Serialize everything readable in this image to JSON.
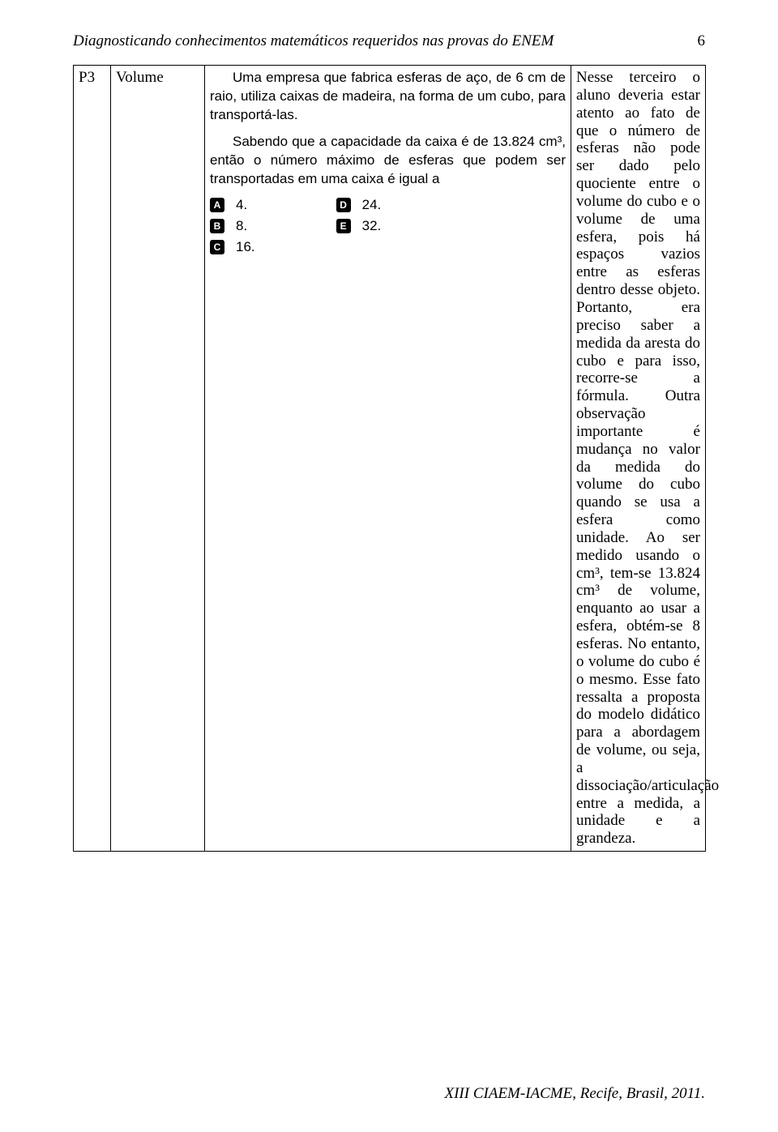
{
  "header": {
    "title": "Diagnosticando conhecimentos matemáticos requeridos nas provas do ENEM",
    "page_number": "6"
  },
  "table": {
    "row_id": "P3",
    "topic": "Volume",
    "question": {
      "p1": "Uma empresa que fabrica esferas de aço, de 6 cm de raio, utiliza caixas de madeira, na forma de um cubo, para transportá-las.",
      "p2": "Sabendo que a capacidade da caixa é de 13.824 cm³, então o número máximo de esferas que podem ser transportadas em uma caixa é igual a",
      "answers": {
        "A": "4.",
        "B": "8.",
        "C": "16.",
        "D": "24.",
        "E": "32."
      }
    },
    "analysis": "Nesse terceiro o aluno deveria estar atento ao fato de que o número de esferas não pode ser dado pelo quociente entre o volume do cubo e o volume de uma esfera, pois há espaços vazios entre as esferas dentro desse objeto. Portanto, era preciso saber a medida da aresta do cubo e para isso, recorre-se a fórmula. Outra observação importante é mudança no valor da medida do volume do cubo quando se usa a esfera como unidade. Ao ser medido usando o cm³, tem-se 13.824 cm³ de volume, enquanto ao usar a esfera, obtém-se 8 esferas. No entanto, o volume do cubo é o mesmo. Esse fato ressalta a proposta do modelo didático para a abordagem de volume, ou seja, a dissociação/articulação entre a medida, a unidade e a grandeza."
  },
  "footer": "XIII CIAEM-IACME, Recife, Brasil, 2011."
}
